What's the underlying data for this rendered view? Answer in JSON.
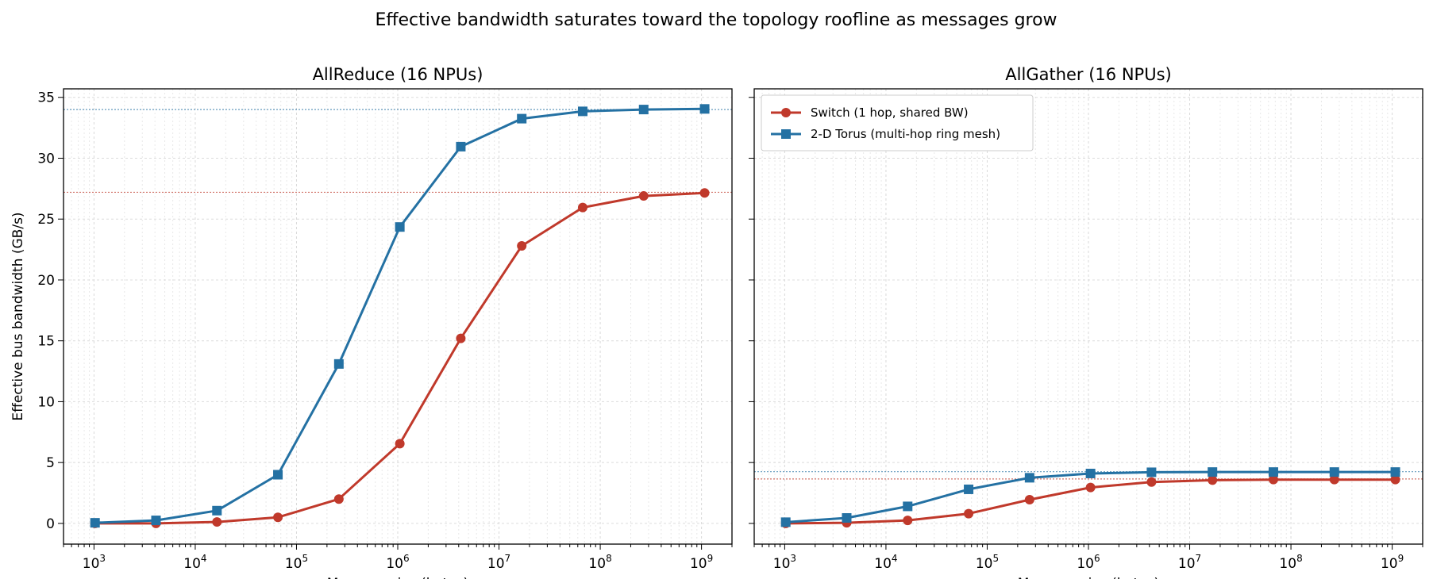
{
  "figure": {
    "suptitle": "Effective bandwidth saturates toward the topology roofline as messages grow"
  },
  "chart_data": [
    {
      "type": "line",
      "title": "AllReduce  (16 NPUs)",
      "xlabel": "Message size (bytes)",
      "ylabel": "Effective bus bandwidth (GB/s)",
      "xscale": "log",
      "xlim": [
        500,
        2000000000
      ],
      "ylim": [
        -1.7,
        35.7
      ],
      "yticks": [
        0,
        5,
        10,
        15,
        20,
        25,
        30,
        35
      ],
      "xticks_exp": [
        3,
        4,
        5,
        6,
        7,
        8,
        9
      ],
      "grid": true,
      "x": [
        1024,
        4096,
        16384,
        65536,
        262144,
        1048576,
        4194304,
        16777216,
        67108864,
        268435456,
        1073741824
      ],
      "series": [
        {
          "name": "Switch (1 hop, shared BW)",
          "color": "#c0392b",
          "marker": "circle",
          "values": [
            0.0,
            0.0,
            0.12,
            0.5,
            2.0,
            6.55,
            15.2,
            22.8,
            25.95,
            26.9,
            27.15
          ],
          "roofline": 27.2
        },
        {
          "name": "2-D Torus (multi-hop ring mesh)",
          "color": "#2471a3",
          "marker": "square",
          "values": [
            0.05,
            0.25,
            1.05,
            4.0,
            13.1,
            24.35,
            30.95,
            33.25,
            33.85,
            34.0,
            34.05
          ],
          "roofline": 34.0
        }
      ]
    },
    {
      "type": "line",
      "title": "AllGather  (16 NPUs)",
      "xlabel": "Message size (bytes)",
      "ylabel": "",
      "xscale": "log",
      "xlim": [
        500,
        2000000000
      ],
      "ylim": [
        -1.7,
        35.7
      ],
      "yticks": [
        0,
        5,
        10,
        15,
        20,
        25,
        30,
        35
      ],
      "xticks_exp": [
        3,
        4,
        5,
        6,
        7,
        8,
        9
      ],
      "grid": true,
      "legend": "top-left",
      "x": [
        1024,
        4096,
        16384,
        65536,
        262144,
        1048576,
        4194304,
        16777216,
        67108864,
        268435456,
        1073741824
      ],
      "series": [
        {
          "name": "Switch (1 hop, shared BW)",
          "color": "#c0392b",
          "marker": "circle",
          "values": [
            0.0,
            0.05,
            0.25,
            0.8,
            1.95,
            2.95,
            3.4,
            3.55,
            3.6,
            3.6,
            3.6
          ],
          "roofline": 3.65
        },
        {
          "name": "2-D Torus (multi-hop ring mesh)",
          "color": "#2471a3",
          "marker": "square",
          "values": [
            0.1,
            0.45,
            1.4,
            2.8,
            3.75,
            4.1,
            4.2,
            4.22,
            4.22,
            4.22,
            4.22
          ],
          "roofline": 4.25
        }
      ]
    }
  ]
}
